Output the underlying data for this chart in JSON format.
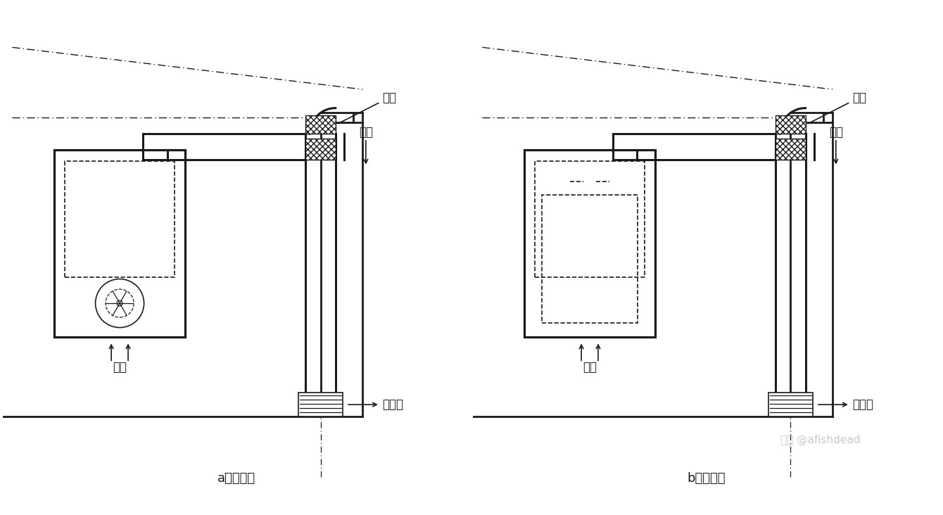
{
  "line_color": "#1a1a1a",
  "label_a": "a）鼓风式",
  "label_b": "b）引风式",
  "label_qutou": "弯头",
  "label_yanqi": "烟气",
  "label_kongqi": "空气",
  "label_jinqikou": "进气口",
  "watermark": "知乎 @afishdead"
}
